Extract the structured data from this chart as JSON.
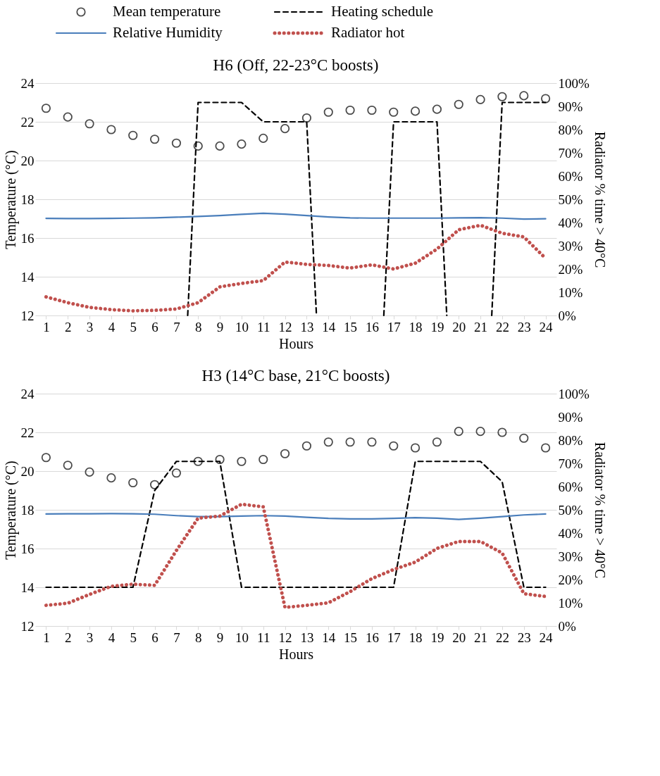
{
  "chart_data": [
    {
      "type": "line",
      "title": "H6 (Off, 22-23°C boosts)",
      "xlabel": "Hours",
      "ylabel": "Temperature (°C)",
      "y2label": "Radiator % time > 40°C",
      "legend": "top",
      "grid": "y",
      "x": [
        1,
        2,
        3,
        4,
        5,
        6,
        7,
        8,
        9,
        10,
        11,
        12,
        13,
        14,
        15,
        16,
        17,
        18,
        19,
        20,
        21,
        22,
        23,
        24
      ],
      "xlim": [
        0.5,
        24.5
      ],
      "xticks": [
        1,
        2,
        3,
        4,
        5,
        6,
        7,
        8,
        9,
        10,
        11,
        12,
        13,
        14,
        15,
        16,
        17,
        18,
        19,
        20,
        21,
        22,
        23,
        24
      ],
      "ylim": [
        12,
        24
      ],
      "yticks": [
        12,
        14,
        16,
        18,
        20,
        22,
        24
      ],
      "y2lim": [
        0,
        100
      ],
      "y2ticks": [
        {
          "value": 0,
          "label": "0%"
        },
        {
          "value": 10,
          "label": "10%"
        },
        {
          "value": 20,
          "label": "20%"
        },
        {
          "value": 30,
          "label": "30%"
        },
        {
          "value": 40,
          "label": "40%"
        },
        {
          "value": 50,
          "label": "50%"
        },
        {
          "value": 60,
          "label": "60%"
        },
        {
          "value": 70,
          "label": "70%"
        },
        {
          "value": 80,
          "label": "80%"
        },
        {
          "value": 90,
          "label": "90%"
        },
        {
          "value": 100,
          "label": "100%"
        }
      ],
      "series": [
        {
          "name": "Mean temperature",
          "type": "scatter",
          "marker": "circle",
          "color": "#000000",
          "values": [
            22.7,
            22.25,
            21.9,
            21.6,
            21.3,
            21.1,
            20.9,
            20.75,
            20.75,
            20.85,
            21.15,
            21.65,
            22.2,
            22.5,
            22.6,
            22.6,
            22.5,
            22.55,
            22.65,
            22.9,
            23.15,
            23.3,
            23.35,
            23.2
          ]
        },
        {
          "name": "Heating schedule",
          "type": "line",
          "line_style": "dashed",
          "color": "#000000",
          "x": [
            7.52,
            8,
            9,
            10,
            11,
            12,
            13,
            13.45,
            15,
            16.55,
            17,
            18,
            19,
            19.45,
            21,
            21.52,
            22,
            23,
            24
          ],
          "values": [
            12,
            23,
            23,
            23,
            22,
            22,
            22,
            12,
            null,
            12,
            22,
            22,
            22,
            12,
            null,
            12,
            23,
            23,
            23
          ]
        },
        {
          "name": "Relative Humidity",
          "type": "line",
          "axis": "y2",
          "line_style": "solid",
          "color": "#4a7ebb",
          "values": [
            41.8,
            41.7,
            41.7,
            41.8,
            41.9,
            42,
            42.3,
            42.6,
            43,
            43.5,
            44,
            43.6,
            43,
            42.4,
            42,
            41.9,
            41.9,
            41.9,
            41.9,
            42,
            42.1,
            41.9,
            41.5,
            41.6
          ]
        },
        {
          "name": "Radiator hot",
          "type": "line",
          "axis": "y2",
          "line_style": "dotted",
          "color": "#c0504d",
          "values": [
            8,
            5.5,
            3.5,
            2.5,
            2,
            2.2,
            2.8,
            5.5,
            12.3,
            13.8,
            15,
            23,
            22,
            21.5,
            20.4,
            21.8,
            20,
            22.5,
            28.6,
            36.9,
            38.8,
            35.4,
            33.8,
            24.6
          ]
        }
      ]
    },
    {
      "type": "line",
      "title": "H3 (14°C base, 21°C boosts)",
      "xlabel": "Hours",
      "ylabel": "Temperature (°C)",
      "y2label": "Radiator % time > 40°C",
      "grid": "y",
      "x": [
        1,
        2,
        3,
        4,
        5,
        6,
        7,
        8,
        9,
        10,
        11,
        12,
        13,
        14,
        15,
        16,
        17,
        18,
        19,
        20,
        21,
        22,
        23,
        24
      ],
      "xlim": [
        0.5,
        24.5
      ],
      "xticks": [
        1,
        2,
        3,
        4,
        5,
        6,
        7,
        8,
        9,
        10,
        11,
        12,
        13,
        14,
        15,
        16,
        17,
        18,
        19,
        20,
        21,
        22,
        23,
        24
      ],
      "ylim": [
        12,
        24
      ],
      "yticks": [
        12,
        14,
        16,
        18,
        20,
        22,
        24
      ],
      "y2lim": [
        0,
        100
      ],
      "y2ticks": [
        {
          "value": 0,
          "label": "0%"
        },
        {
          "value": 10,
          "label": "10%"
        },
        {
          "value": 20,
          "label": "20%"
        },
        {
          "value": 30,
          "label": "30%"
        },
        {
          "value": 40,
          "label": "40%"
        },
        {
          "value": 50,
          "label": "50%"
        },
        {
          "value": 60,
          "label": "60%"
        },
        {
          "value": 70,
          "label": "70%"
        },
        {
          "value": 80,
          "label": "80%"
        },
        {
          "value": 90,
          "label": "90%"
        },
        {
          "value": 100,
          "label": "100%"
        }
      ],
      "series": [
        {
          "type": "scatter",
          "marker": "circle",
          "color": "#000000",
          "values": [
            20.7,
            20.3,
            19.95,
            19.65,
            19.4,
            19.3,
            19.9,
            20.5,
            20.6,
            20.5,
            20.6,
            20.9,
            21.3,
            21.5,
            21.5,
            21.5,
            21.3,
            21.2,
            21.5,
            22.05,
            22.05,
            22.0,
            21.7,
            21.2
          ]
        },
        {
          "type": "line",
          "line_style": "dashed",
          "color": "#000000",
          "values": [
            14,
            14,
            14,
            14,
            14,
            19,
            20.5,
            20.5,
            20.5,
            14,
            14,
            14,
            14,
            14,
            14,
            14,
            14,
            20.5,
            20.5,
            20.5,
            20.5,
            19.45,
            14,
            14
          ]
        },
        {
          "type": "line",
          "axis": "y2",
          "line_style": "solid",
          "color": "#4a7ebb",
          "values": [
            48.2,
            48.3,
            48.3,
            48.4,
            48.3,
            48.1,
            47.5,
            47.1,
            47.1,
            47.3,
            47.5,
            47.3,
            46.8,
            46.3,
            46.1,
            46.1,
            46.3,
            46.6,
            46.4,
            45.9,
            46.4,
            47.1,
            47.8,
            48.2
          ]
        },
        {
          "type": "line",
          "axis": "y2",
          "line_style": "dotted",
          "color": "#c0504d",
          "values": [
            8.9,
            9.8,
            13.6,
            17.1,
            18,
            17.5,
            32.5,
            46.4,
            47.3,
            52.4,
            51.3,
            8,
            8.9,
            10,
            14.8,
            20.4,
            24.3,
            27.5,
            33.4,
            36.4,
            36.4,
            31.4,
            13.9,
            12.7
          ]
        }
      ]
    }
  ]
}
